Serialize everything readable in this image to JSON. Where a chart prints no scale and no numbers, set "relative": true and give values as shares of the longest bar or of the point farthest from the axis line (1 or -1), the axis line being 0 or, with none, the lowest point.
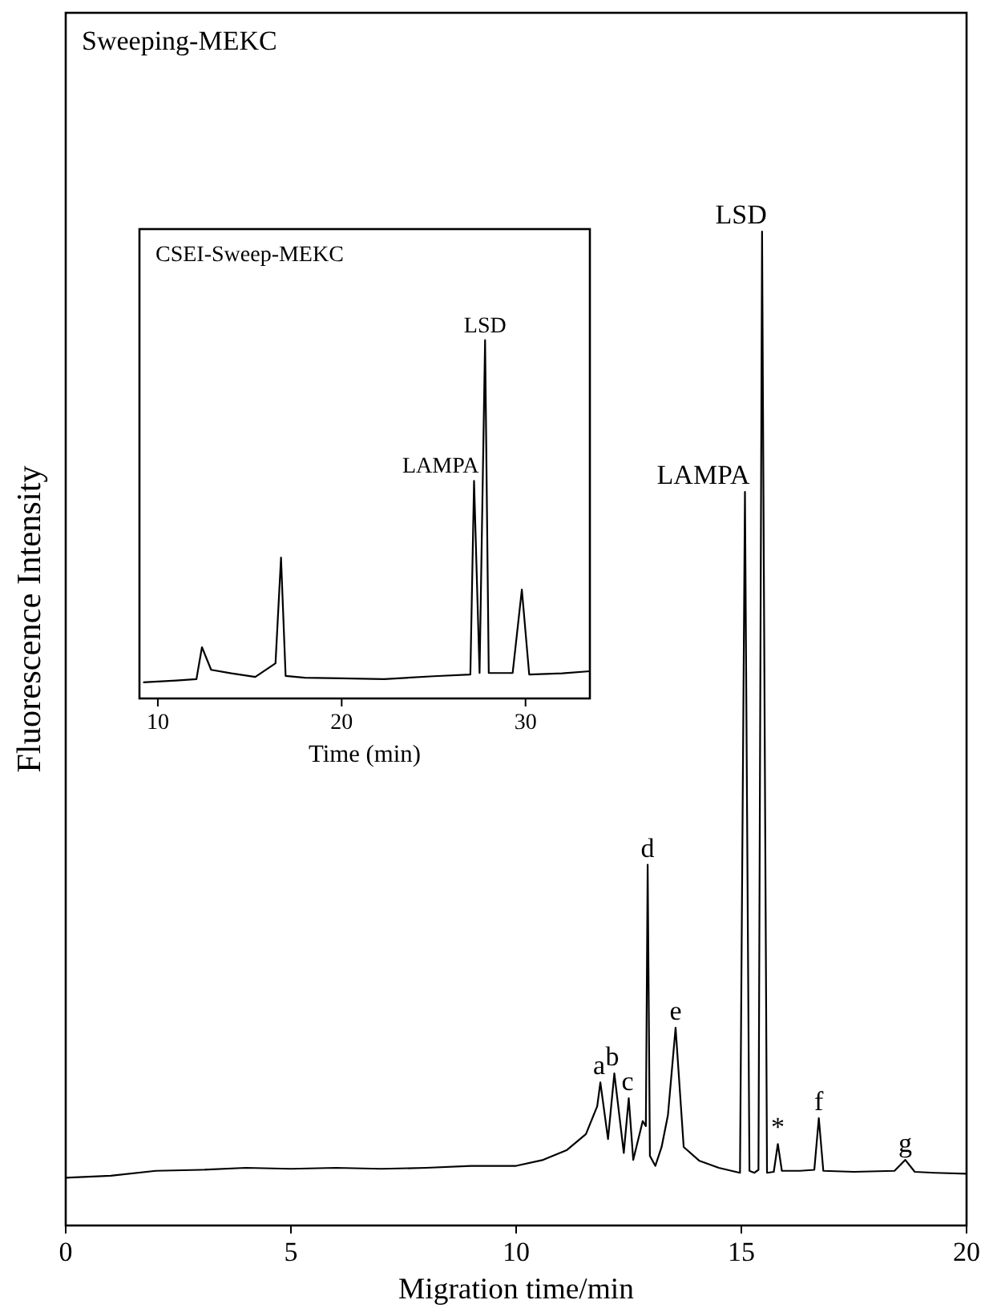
{
  "chart_data": [
    {
      "type": "line",
      "title": "Sweeping-MEKC",
      "xlabel": "Migration time/min",
      "ylabel": "Fluorescence Intensity",
      "relative": true,
      "xlim": [
        0,
        20
      ],
      "xticks": [
        0,
        5,
        10,
        15,
        20
      ],
      "grid": false,
      "series": [
        {
          "color": "#000000",
          "x": [
            0,
            1,
            2,
            3,
            4,
            5,
            6,
            7,
            8,
            9,
            10,
            10.6,
            11.13,
            11.55,
            11.8,
            11.87,
            12.04,
            12.18,
            12.39,
            12.5,
            12.6,
            12.81,
            12.88,
            12.92,
            12.97,
            13.09,
            13.23,
            13.37,
            13.54,
            13.72,
            14.07,
            14.5,
            14.97,
            15.08,
            15.18,
            15.29,
            15.38,
            15.46,
            15.57,
            15.72,
            15.81,
            15.9,
            16.3,
            16.62,
            16.72,
            16.82,
            17.5,
            18.4,
            18.64,
            18.85,
            19.3,
            20
          ],
          "values": [
            0.048,
            0.05,
            0.055,
            0.056,
            0.058,
            0.057,
            0.058,
            0.057,
            0.058,
            0.06,
            0.06,
            0.066,
            0.076,
            0.092,
            0.12,
            0.144,
            0.087,
            0.153,
            0.073,
            0.128,
            0.066,
            0.105,
            0.1,
            0.363,
            0.07,
            0.06,
            0.079,
            0.111,
            0.199,
            0.079,
            0.065,
            0.058,
            0.053,
            0.738,
            0.055,
            0.053,
            0.056,
            1.0,
            0.053,
            0.054,
            0.082,
            0.055,
            0.055,
            0.056,
            0.108,
            0.055,
            0.054,
            0.055,
            0.066,
            0.054,
            0.053,
            0.052
          ]
        }
      ],
      "annotations": [
        {
          "text": "a",
          "x": 11.87,
          "y": 0.144
        },
        {
          "text": "b",
          "x": 12.18,
          "y": 0.153
        },
        {
          "text": "c",
          "x": 12.5,
          "y": 0.128
        },
        {
          "text": "d",
          "x": 12.92,
          "y": 0.363
        },
        {
          "text": "e",
          "x": 13.54,
          "y": 0.199
        },
        {
          "text": "LAMPA",
          "x": 15.08,
          "y": 0.738
        },
        {
          "text": "LSD",
          "x": 15.46,
          "y": 1.0
        },
        {
          "text": "*",
          "x": 15.81,
          "y": 0.082
        },
        {
          "text": "f",
          "x": 16.72,
          "y": 0.108
        },
        {
          "text": "g",
          "x": 18.64,
          "y": 0.066
        }
      ]
    },
    {
      "type": "line",
      "title": "CSEI-Sweep-MEKC",
      "xlabel": "Time (min)",
      "relative": true,
      "xlim": [
        9,
        33.5
      ],
      "xticks": [
        10,
        20,
        30
      ],
      "grid": false,
      "series": [
        {
          "color": "#000000",
          "x": [
            9.2,
            11,
            12.1,
            12.4,
            12.9,
            14,
            15.3,
            16.4,
            16.7,
            16.95,
            18,
            20,
            22.3,
            25,
            27.0,
            27.2,
            27.5,
            27.8,
            28.0,
            29.3,
            29.8,
            30.2,
            32,
            33.5
          ],
          "values": [
            0.045,
            0.05,
            0.054,
            0.143,
            0.08,
            0.07,
            0.06,
            0.098,
            0.393,
            0.063,
            0.058,
            0.056,
            0.054,
            0.062,
            0.067,
            0.607,
            0.071,
            1.0,
            0.071,
            0.071,
            0.304,
            0.067,
            0.07,
            0.076
          ]
        }
      ],
      "annotations": [
        {
          "text": "LAMPA",
          "x": 27.2,
          "y": 0.607
        },
        {
          "text": "LSD",
          "x": 27.8,
          "y": 1.0
        }
      ]
    }
  ]
}
